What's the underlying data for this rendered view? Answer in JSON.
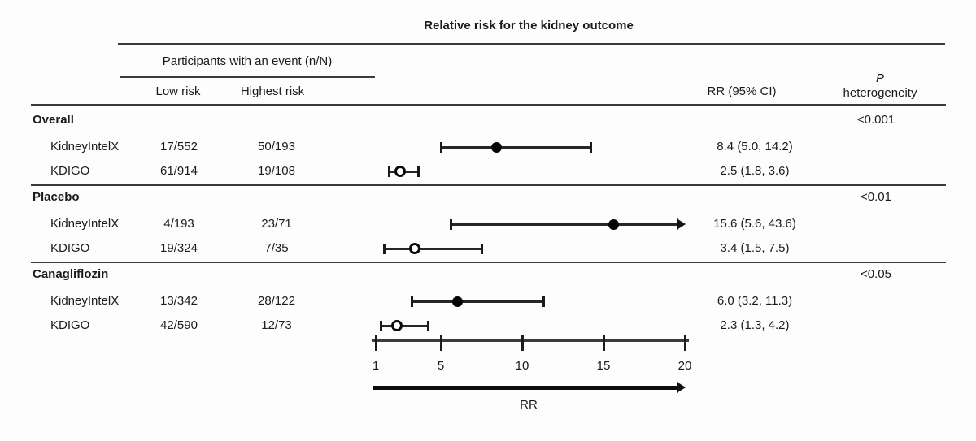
{
  "title": "Relative risk for the kidney outcome",
  "columns": {
    "participants_header": "Participants with an event (n/N)",
    "low_risk": "Low risk",
    "highest_risk": "Highest risk",
    "rr_ci": "RR (95% CI)",
    "p_line1": "P",
    "p_line2": "heterogeneity"
  },
  "chart_data": {
    "type": "forest",
    "title": "Relative risk for the kidney outcome",
    "xlabel": "RR",
    "xlim": [
      1,
      20
    ],
    "axis_ticks": [
      "1",
      "5",
      "10",
      "15",
      "20"
    ],
    "axis_arrow_direction": "right",
    "groups": [
      {
        "label": "Overall",
        "p_heterogeneity": "<0.001",
        "rows": [
          {
            "label": "KidneyIntelX",
            "low_risk": "17/552",
            "highest_risk": "50/193",
            "rr": 8.4,
            "ci_low": 5.0,
            "ci_high": 14.2,
            "rr_text": "8.4 (5.0, 14.2)",
            "marker": "filled",
            "ci_high_clipped": false
          },
          {
            "label": "KDIGO",
            "low_risk": "61/914",
            "highest_risk": "19/108",
            "rr": 2.5,
            "ci_low": 1.8,
            "ci_high": 3.6,
            "rr_text": "2.5 (1.8, 3.6)",
            "marker": "open",
            "ci_high_clipped": false
          }
        ]
      },
      {
        "label": "Placebo",
        "p_heterogeneity": "<0.01",
        "rows": [
          {
            "label": "KidneyIntelX",
            "low_risk": "4/193",
            "highest_risk": "23/71",
            "rr": 15.6,
            "ci_low": 5.6,
            "ci_high": 43.6,
            "rr_text": "15.6 (5.6, 43.6)",
            "marker": "filled",
            "ci_high_clipped": true
          },
          {
            "label": "KDIGO",
            "low_risk": "19/324",
            "highest_risk": "7/35",
            "rr": 3.4,
            "ci_low": 1.5,
            "ci_high": 7.5,
            "rr_text": "3.4 (1.5, 7.5)",
            "marker": "open",
            "ci_high_clipped": false
          }
        ]
      },
      {
        "label": "Canagliflozin",
        "p_heterogeneity": "<0.05",
        "rows": [
          {
            "label": "KidneyIntelX",
            "low_risk": "13/342",
            "highest_risk": "28/122",
            "rr": 6.0,
            "ci_low": 3.2,
            "ci_high": 11.3,
            "rr_text": "6.0 (3.2, 11.3)",
            "marker": "filled",
            "ci_high_clipped": false
          },
          {
            "label": "KDIGO",
            "low_risk": "42/590",
            "highest_risk": "12/73",
            "rr": 2.3,
            "ci_low": 1.3,
            "ci_high": 4.2,
            "rr_text": "2.3 (1.3, 4.2)",
            "marker": "open",
            "ci_high_clipped": false
          }
        ]
      }
    ]
  },
  "colors": {
    "text": "#1b1b1b",
    "rule": "#3b3b3b",
    "marker_filled": "#050505",
    "marker_open_fill": "#ffffff"
  }
}
